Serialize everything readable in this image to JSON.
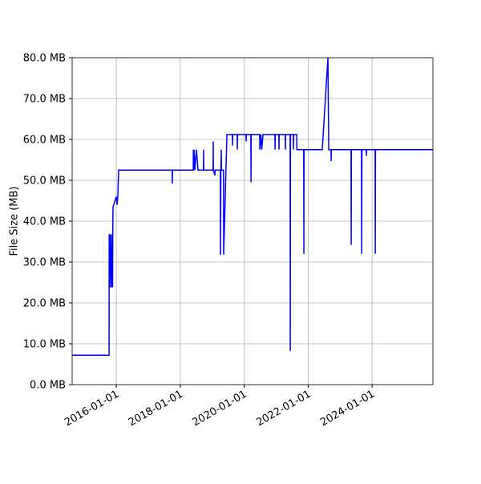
{
  "chart_data": {
    "type": "line",
    "y_label": "File Size (MB)",
    "color": "#0000ff",
    "grid": true,
    "x": [
      "2014-08-15",
      "2015-10-11",
      "2015-10-12",
      "2015-10-20",
      "2015-10-22",
      "2015-11-07",
      "2015-11-09",
      "2015-11-20",
      "2015-11-22",
      "2015-11-25",
      "2015-12-05",
      "2016-01-01",
      "2016-01-10",
      "2016-01-19",
      "2016-01-28",
      "2017-10-01",
      "2017-10-03",
      "2017-10-05",
      "2018-05-29",
      "2018-05-31",
      "2018-06-04",
      "2018-06-08",
      "2018-06-17",
      "2018-07-05",
      "2018-07-23",
      "2018-09-23",
      "2018-09-25",
      "2018-09-27",
      "2019-01-11",
      "2019-01-13",
      "2019-01-15",
      "2019-02-01",
      "2019-02-03",
      "2019-04-04",
      "2019-04-06",
      "2019-04-10",
      "2019-04-15",
      "2019-04-17",
      "2019-05-10",
      "2019-05-12",
      "2019-06-18",
      "2019-08-19",
      "2019-08-21",
      "2019-08-23",
      "2019-10-13",
      "2019-10-15",
      "2019-10-17",
      "2020-01-22",
      "2020-01-24",
      "2020-01-26",
      "2020-03-17",
      "2020-03-19",
      "2020-03-21",
      "2020-06-26",
      "2020-06-28",
      "2020-07-10",
      "2020-07-20",
      "2020-08-03",
      "2020-12-17",
      "2020-12-19",
      "2020-12-21",
      "2021-01-31",
      "2021-02-02",
      "2021-02-04",
      "2021-04-15",
      "2021-04-17",
      "2021-04-19",
      "2021-06-09",
      "2021-06-11",
      "2021-06-13",
      "2021-07-15",
      "2021-07-17",
      "2021-07-19",
      "2021-08-23",
      "2021-08-25",
      "2021-11-11",
      "2021-11-13",
      "2021-11-15",
      "2022-06-11",
      "2022-08-15",
      "2022-08-24",
      "2022-09-19",
      "2022-09-21",
      "2022-09-23",
      "2023-05-06",
      "2023-05-08",
      "2023-05-10",
      "2023-09-02",
      "2023-09-04",
      "2023-09-06",
      "2023-09-08",
      "2023-10-27",
      "2023-10-29",
      "2023-10-31",
      "2024-02-05",
      "2024-02-07",
      "2024-02-09",
      "2025-11-26"
    ],
    "values": [
      7.2,
      7.2,
      36.8,
      23.8,
      36.8,
      23.8,
      36.8,
      23.8,
      36.8,
      43.5,
      44.2,
      46.0,
      44.0,
      46.0,
      52.5,
      52.5,
      49.2,
      52.5,
      52.5,
      57.5,
      52.5,
      57.5,
      52.5,
      57.5,
      52.5,
      52.5,
      57.5,
      52.5,
      52.5,
      59.5,
      52.5,
      51.2,
      52.5,
      52.5,
      31.8,
      52.5,
      57.5,
      52.5,
      52.5,
      31.8,
      61.2,
      61.2,
      58.5,
      61.2,
      61.2,
      57.5,
      61.2,
      61.2,
      59.5,
      61.2,
      61.2,
      49.5,
      61.2,
      61.2,
      57.5,
      61.2,
      57.5,
      61.2,
      61.2,
      57.5,
      61.2,
      61.2,
      57.5,
      61.2,
      61.2,
      57.5,
      61.2,
      61.2,
      8.2,
      61.2,
      61.2,
      57.5,
      61.2,
      61.2,
      57.5,
      57.5,
      32.0,
      57.5,
      57.5,
      80.0,
      57.5,
      57.5,
      54.7,
      57.5,
      57.5,
      34.2,
      57.5,
      57.5,
      32.0,
      47.0,
      57.5,
      57.5,
      56.0,
      57.5,
      57.5,
      32.0,
      57.5,
      57.5
    ],
    "xlim": [
      "2014-08-15",
      "2025-11-26"
    ],
    "xticks": [
      "2016-01-01",
      "2018-01-01",
      "2020-01-01",
      "2022-01-01",
      "2024-01-01"
    ],
    "ylim": [
      0,
      80
    ],
    "yticks": [
      {
        "value": 0,
        "label": "0.0 MB"
      },
      {
        "value": 10,
        "label": "10.0 MB"
      },
      {
        "value": 20,
        "label": "20.0 MB"
      },
      {
        "value": 30,
        "label": "30.0 MB"
      },
      {
        "value": 40,
        "label": "40.0 MB"
      },
      {
        "value": 50,
        "label": "50.0 MB"
      },
      {
        "value": 60,
        "label": "60.0 MB"
      },
      {
        "value": 70,
        "label": "70.0 MB"
      },
      {
        "value": 80,
        "label": "80.0 MB"
      }
    ]
  }
}
